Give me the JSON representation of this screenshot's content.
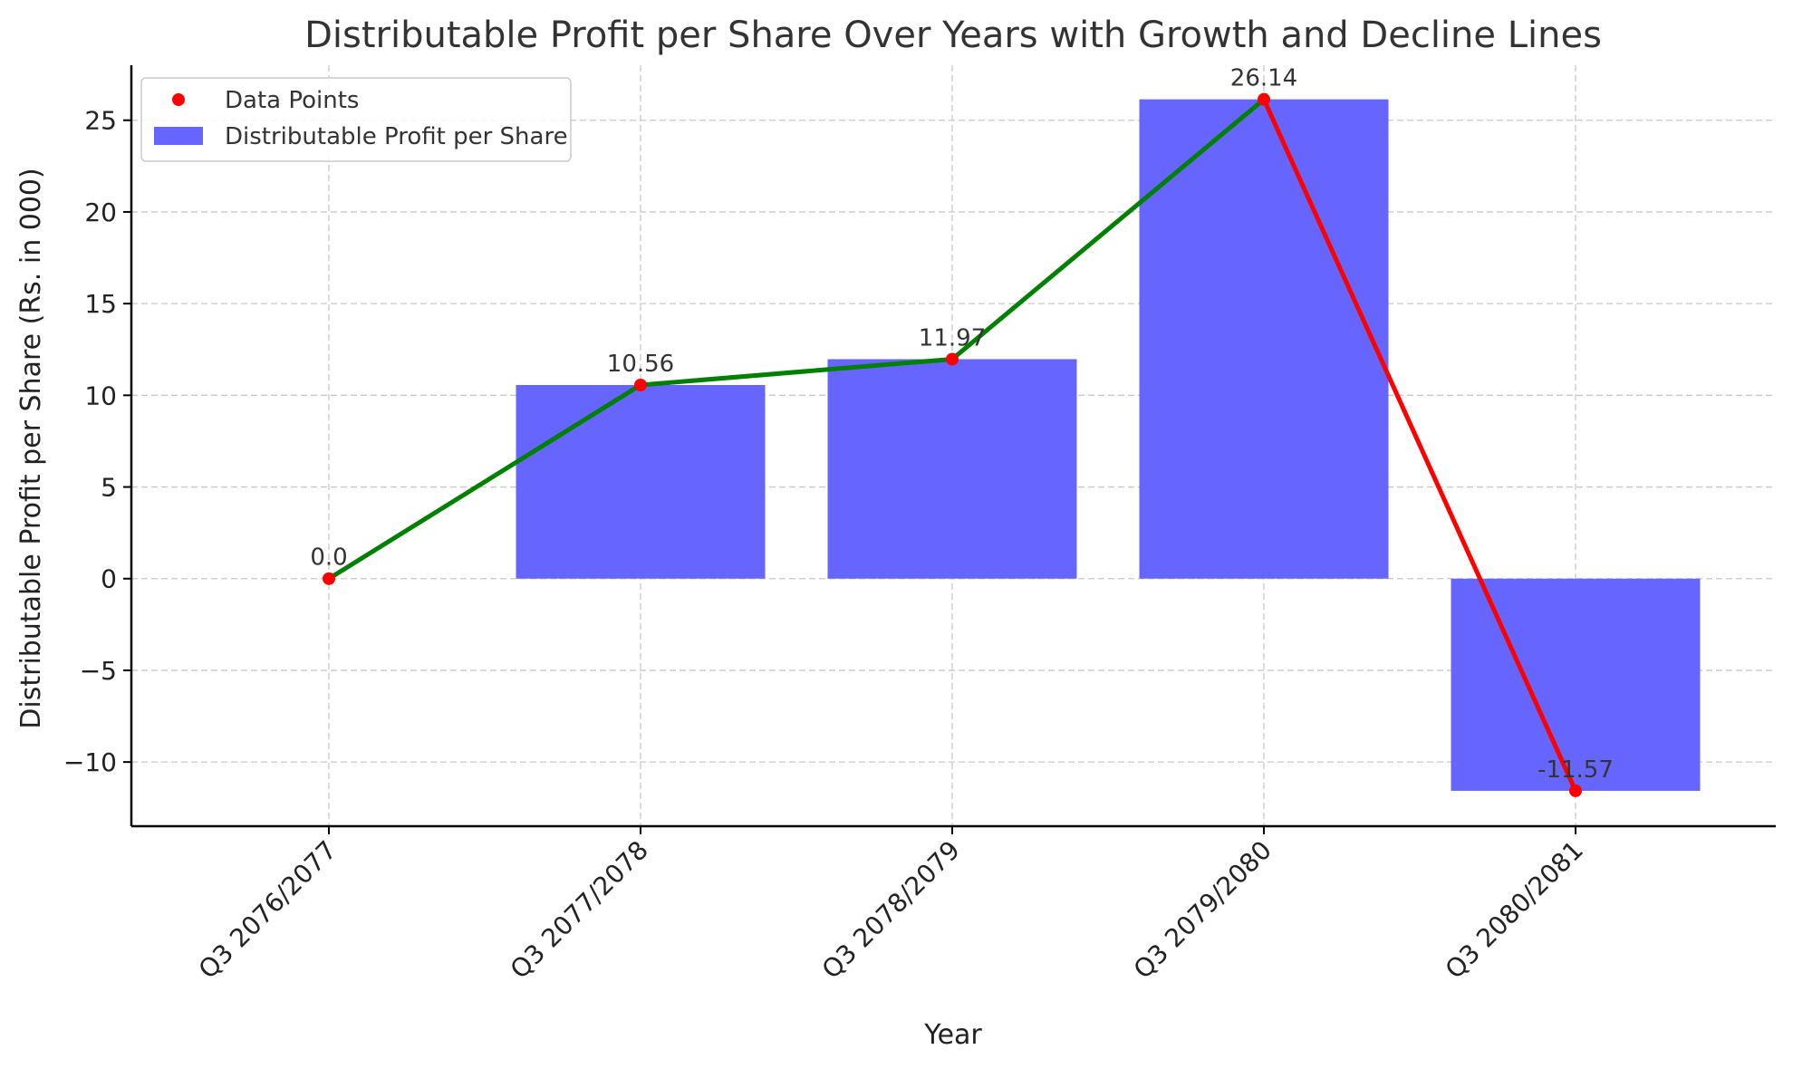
{
  "chart_data": {
    "type": "bar",
    "title": "Distributable Profit per Share Over Years with Growth and Decline Lines",
    "xlabel": "Year",
    "ylabel": "Distributable Profit per Share (Rs. in 000)",
    "categories": [
      "Q3 2076/2077",
      "Q3 2077/2078",
      "Q3 2078/2079",
      "Q3 2079/2080",
      "Q3 2080/2081"
    ],
    "series": [
      {
        "name": "Distributable Profit per Share",
        "kind": "bar",
        "color": "#6666ff",
        "values": [
          0.0,
          10.56,
          11.97,
          26.14,
          -11.57
        ]
      },
      {
        "name": "Data Points",
        "kind": "marker",
        "color": "#ff0000",
        "values": [
          0.0,
          10.56,
          11.97,
          26.14,
          -11.57
        ]
      }
    ],
    "data_labels": [
      "0.0",
      "10.56",
      "11.97",
      "26.14",
      "-11.57"
    ],
    "segment_colors": {
      "growth": "#008000",
      "decline": "#ff0000"
    },
    "ylim": [
      -13.5,
      28
    ],
    "yticks": [
      -10,
      -5,
      0,
      5,
      10,
      15,
      20,
      25
    ],
    "ytick_labels": [
      "−10",
      "−5",
      "0",
      "5",
      "10",
      "15",
      "20",
      "25"
    ],
    "grid": true,
    "legend": {
      "position": "top-left",
      "entries": [
        {
          "label": "Data Points",
          "marker": "dot",
          "color": "#ff0000"
        },
        {
          "label": "Distributable Profit per Share",
          "marker": "patch",
          "color": "#6666ff"
        }
      ]
    }
  }
}
